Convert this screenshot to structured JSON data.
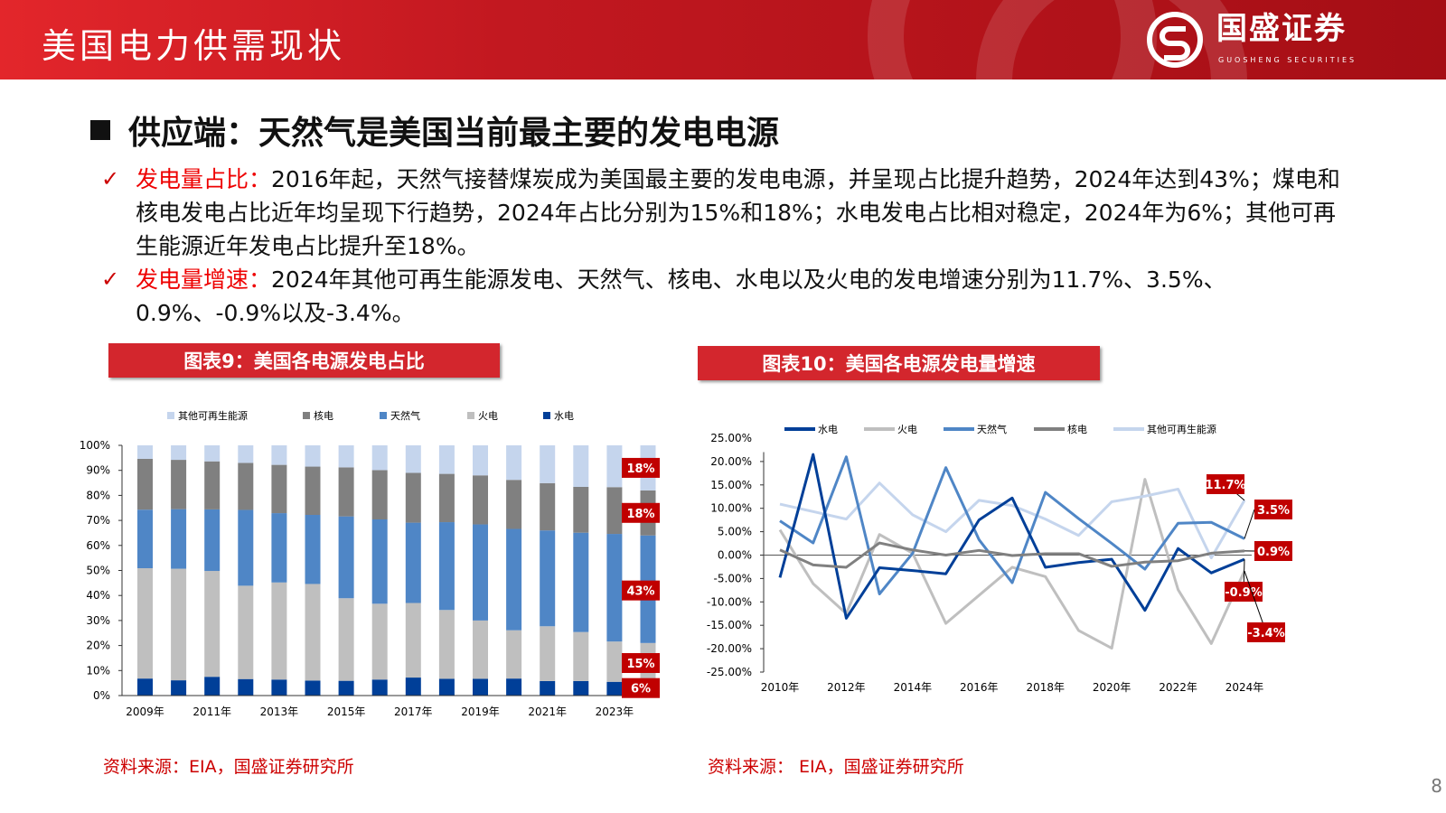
{
  "header": {
    "title": "美国电力供需现状",
    "logo_name": "国盛证券",
    "logo_sub": "GUOSHENG SECURITIES"
  },
  "heading": "供应端：天然气是美国当前最主要的发电电源",
  "bullets": [
    {
      "label": "发电量占比：",
      "text": "2016年起，天然气接替煤炭成为美国最主要的发电电源，并呈现占比提升趋势，2024年达到43%；煤电和核电发电占比近年均呈现下行趋势，2024年占比分别为15%和18%；水电发电占比相对稳定，2024年为6%；其他可再生能源近年发电占比提升至18%。"
    },
    {
      "label": "发电量增速：",
      "text": "2024年其他可再生能源发电、天然气、核电、水电以及火电的发电增速分别为11.7%、3.5%、0.9%、-0.9%以及-3.4%。"
    }
  ],
  "sources": [
    "资料来源：EIA，国盛证券研究所",
    "资料来源： EIA，国盛证券研究所"
  ],
  "page_number": "8",
  "colors": {
    "hydro": "#003f98",
    "coal": "#bfbfbf",
    "gas": "#4f86c6",
    "nuclear": "#808080",
    "other": "#c5d5ed",
    "label_bg": "#c00000"
  },
  "chart_data": [
    {
      "type": "bar",
      "stacked": true,
      "title": "图表9：美国各电源发电占比",
      "categories": [
        "2009年",
        "2010年",
        "2011年",
        "2012年",
        "2013年",
        "2014年",
        "2015年",
        "2016年",
        "2017年",
        "2018年",
        "2019年",
        "2020年",
        "2021年",
        "2022年",
        "2023年",
        "2024年"
      ],
      "tick_labels": [
        "2009年",
        "2011年",
        "2013年",
        "2015年",
        "2017年",
        "2019年",
        "2021年",
        "2023年"
      ],
      "yticks": [
        "0%",
        "10%",
        "20%",
        "30%",
        "40%",
        "50%",
        "60%",
        "70%",
        "80%",
        "90%",
        "100%"
      ],
      "ylim": [
        0,
        100
      ],
      "legend_position": "top",
      "legend": [
        "其他可再生能源",
        "核电",
        "天然气",
        "火电",
        "水电"
      ],
      "series": [
        {
          "name": "水电",
          "key": "hydro",
          "values": [
            6.8,
            6.1,
            7.5,
            6.6,
            6.4,
            6.0,
            5.9,
            6.4,
            7.2,
            6.7,
            6.7,
            6.8,
            5.8,
            5.8,
            5.5,
            6
          ]
        },
        {
          "name": "火电",
          "key": "coal",
          "values": [
            44.1,
            44.6,
            42.3,
            37.3,
            38.8,
            38.6,
            33.0,
            30.3,
            29.8,
            27.5,
            23.3,
            19.3,
            21.9,
            19.6,
            16.1,
            15
          ]
        },
        {
          "name": "天然气",
          "key": "gas",
          "values": [
            23.4,
            23.8,
            24.6,
            30.3,
            27.7,
            27.6,
            32.7,
            33.7,
            32.1,
            35.1,
            38.4,
            40.5,
            38.3,
            39.7,
            43.0,
            43
          ]
        },
        {
          "name": "核电",
          "key": "nuclear",
          "values": [
            20.3,
            19.7,
            19.2,
            18.8,
            19.3,
            19.3,
            19.6,
            19.7,
            19.9,
            19.3,
            19.6,
            19.6,
            18.9,
            18.3,
            18.7,
            18
          ]
        },
        {
          "name": "其他可再生能源",
          "key": "other",
          "values": [
            5.4,
            5.8,
            6.4,
            7.0,
            7.8,
            8.5,
            8.8,
            9.9,
            11.0,
            11.4,
            12.0,
            13.8,
            15.1,
            16.6,
            16.7,
            18
          ]
        }
      ],
      "annotations": [
        "18%",
        "18%",
        "43%",
        "15%",
        "6%"
      ]
    },
    {
      "type": "line",
      "title": "图表10：美国各电源发电量增速",
      "x": [
        "2010年",
        "2011年",
        "2012年",
        "2013年",
        "2014年",
        "2015年",
        "2016年",
        "2017年",
        "2018年",
        "2019年",
        "2020年",
        "2021年",
        "2022年",
        "2023年",
        "2024年"
      ],
      "tick_labels": [
        "2010年",
        "2012年",
        "2014年",
        "2016年",
        "2018年",
        "2020年",
        "2022年",
        "2024年"
      ],
      "yticks": [
        "25.00%",
        "20.00%",
        "15.00%",
        "10.00%",
        "5.00%",
        "0.00%",
        "-5.00%",
        "-10.00%",
        "-15.00%",
        "-20.00%",
        "-25.00%"
      ],
      "ylim": [
        -25,
        25
      ],
      "legend_position": "top",
      "series": [
        {
          "name": "水电",
          "key": "hydro",
          "values": [
            -4.8,
            21.5,
            -13.5,
            -2.7,
            -3.3,
            -4.0,
            7.5,
            12.2,
            -2.6,
            -1.6,
            -0.9,
            -11.8,
            1.4,
            -3.8,
            -0.9
          ]
        },
        {
          "name": "火电",
          "key": "coal",
          "values": [
            5.4,
            -6.1,
            -12.5,
            4.4,
            0.4,
            -14.6,
            -8.6,
            -2.6,
            -4.6,
            -16.1,
            -19.9,
            16.2,
            -7.4,
            -18.9,
            -3.4
          ]
        },
        {
          "name": "天然气",
          "key": "gas",
          "values": [
            7.3,
            2.6,
            21.0,
            -8.3,
            0.4,
            18.7,
            3.3,
            -5.9,
            13.4,
            7.8,
            2.5,
            -3.0,
            6.8,
            7.0,
            3.5
          ]
        },
        {
          "name": "核电",
          "key": "nuclear",
          "values": [
            1.1,
            -2.1,
            -2.6,
            2.6,
            1.1,
            0.0,
            1.0,
            -0.1,
            0.3,
            0.3,
            -2.4,
            -1.5,
            -1.2,
            0.4,
            0.9
          ]
        },
        {
          "name": "其他可再生能源",
          "key": "other",
          "values": [
            10.9,
            9.3,
            7.7,
            15.4,
            8.6,
            5.0,
            11.7,
            10.6,
            7.7,
            4.2,
            11.4,
            12.6,
            14.1,
            -0.6,
            11.7
          ]
        }
      ],
      "annotations": [
        "11.7%",
        "3.5%",
        "0.9%",
        "-0.9%",
        "-3.4%"
      ]
    }
  ]
}
